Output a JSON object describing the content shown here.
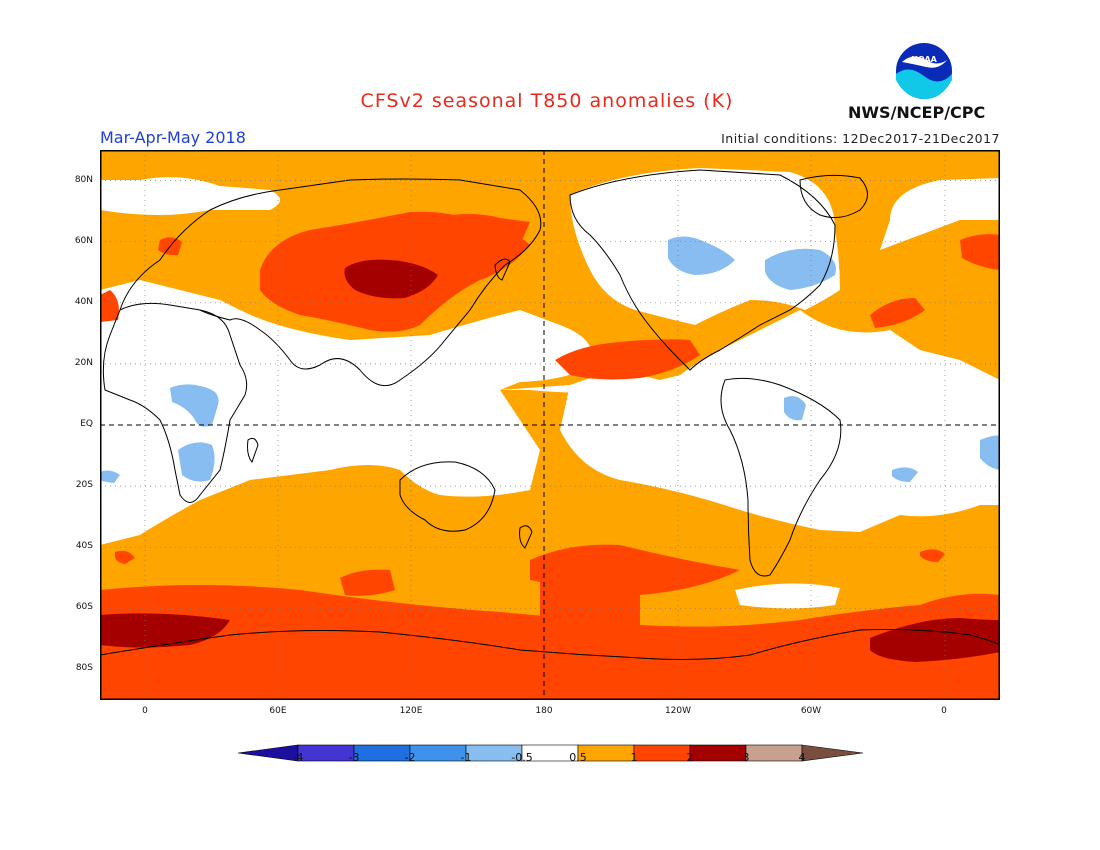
{
  "header": {
    "title": "CFSv2 seasonal T850 anomalies (K)",
    "season": "Mar-Apr-May 2018",
    "initial_conditions": "Initial conditions: 12Dec2017-21Dec2017",
    "agency": "NWS/NCEP/CPC",
    "logo_text": "NOAA"
  },
  "map": {
    "lat_labels": [
      "80N",
      "60N",
      "40N",
      "20N",
      "EQ",
      "20S",
      "40S",
      "60S",
      "80S"
    ],
    "lon_labels": [
      "0",
      "60E",
      "120E",
      "180",
      "120W",
      "60W",
      "0"
    ],
    "colors": {
      "warm1": "#ffa500",
      "warm2": "#ff4500",
      "warm3": "#a50000",
      "cool1": "#87bdf0",
      "neutral": "#ffffff"
    }
  },
  "colorbar": {
    "labels": [
      "-4",
      "-3",
      "-2",
      "-1",
      "-0.5",
      "0.5",
      "1",
      "2",
      "3",
      "4"
    ],
    "colors": [
      "#1c0fa0",
      "#4434d4",
      "#1f6fe0",
      "#3f92ec",
      "#87bdf0",
      "#ffffff",
      "#ffa500",
      "#ff4500",
      "#a50000",
      "#c9a08e",
      "#7a4e3e"
    ]
  }
}
